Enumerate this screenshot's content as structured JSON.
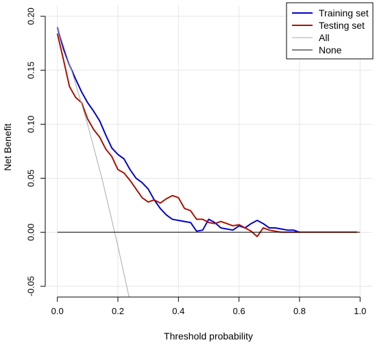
{
  "chart_data": {
    "type": "line",
    "title": "",
    "xlabel": "Threshold probability",
    "ylabel": "Net Benefit",
    "xlim": [
      -0.04,
      1.04
    ],
    "ylim": [
      -0.06,
      0.21
    ],
    "xticks": [
      0.0,
      0.2,
      0.4,
      0.6,
      0.8,
      1.0
    ],
    "xtick_labels": [
      "0.0",
      "0.2",
      "0.4",
      "0.6",
      "0.8",
      "1.0"
    ],
    "yticks": [
      -0.05,
      0.0,
      0.05,
      0.1,
      0.15,
      0.2
    ],
    "ytick_labels": [
      "-0.05",
      "0.00",
      "0.05",
      "0.10",
      "0.15",
      "0.20"
    ],
    "grid": true,
    "legend_position": "top-right",
    "series": [
      {
        "name": "Training set",
        "color": "#0000CC",
        "stroke": "thick",
        "x": [
          0.0,
          0.02,
          0.04,
          0.06,
          0.08,
          0.1,
          0.12,
          0.14,
          0.16,
          0.18,
          0.2,
          0.22,
          0.24,
          0.26,
          0.28,
          0.3,
          0.32,
          0.34,
          0.36,
          0.38,
          0.4,
          0.42,
          0.44,
          0.46,
          0.48,
          0.5,
          0.52,
          0.54,
          0.56,
          0.58,
          0.6,
          0.62,
          0.64,
          0.66,
          0.68,
          0.7,
          0.72,
          0.74,
          0.76,
          0.78,
          0.8
        ],
        "y": [
          0.19,
          0.17,
          0.155,
          0.142,
          0.13,
          0.12,
          0.112,
          0.103,
          0.09,
          0.078,
          0.072,
          0.068,
          0.058,
          0.05,
          0.046,
          0.04,
          0.03,
          0.022,
          0.016,
          0.012,
          0.011,
          0.01,
          0.009,
          0.001,
          0.002,
          0.012,
          0.009,
          0.004,
          0.003,
          0.002,
          0.006,
          0.004,
          0.008,
          0.011,
          0.008,
          0.004,
          0.004,
          0.003,
          0.002,
          0.002,
          0.0
        ]
      },
      {
        "name": "Testing set",
        "color": "#AA1100",
        "stroke": "thick",
        "x": [
          0.0,
          0.02,
          0.04,
          0.06,
          0.08,
          0.1,
          0.12,
          0.14,
          0.16,
          0.18,
          0.2,
          0.22,
          0.24,
          0.26,
          0.28,
          0.3,
          0.32,
          0.34,
          0.36,
          0.38,
          0.4,
          0.42,
          0.44,
          0.46,
          0.48,
          0.5,
          0.52,
          0.54,
          0.56,
          0.58,
          0.6,
          0.62,
          0.64,
          0.66,
          0.68,
          0.7,
          0.72,
          0.74,
          0.76,
          0.78,
          0.8,
          0.85,
          0.9,
          0.95,
          0.99
        ],
        "y": [
          0.184,
          0.16,
          0.135,
          0.125,
          0.12,
          0.105,
          0.095,
          0.088,
          0.077,
          0.07,
          0.058,
          0.055,
          0.048,
          0.04,
          0.032,
          0.028,
          0.03,
          0.027,
          0.031,
          0.034,
          0.032,
          0.022,
          0.02,
          0.012,
          0.012,
          0.009,
          0.008,
          0.01,
          0.008,
          0.006,
          0.007,
          0.004,
          0.001,
          -0.004,
          0.004,
          0.002,
          0.001,
          0.0,
          0.0,
          0.0,
          0.0,
          0.0,
          0.0,
          0.0,
          0.0
        ]
      },
      {
        "name": "All",
        "color": "#AAAAAA",
        "stroke": "thin",
        "x": [
          0.0,
          0.05,
          0.1,
          0.15,
          0.2,
          0.237
        ],
        "y": [
          0.19,
          0.147,
          0.1,
          0.047,
          -0.013,
          -0.06
        ]
      },
      {
        "name": "None",
        "color": "#000000",
        "stroke": "thin",
        "x": [
          0.0,
          1.0
        ],
        "y": [
          0.0,
          0.0
        ]
      }
    ]
  }
}
